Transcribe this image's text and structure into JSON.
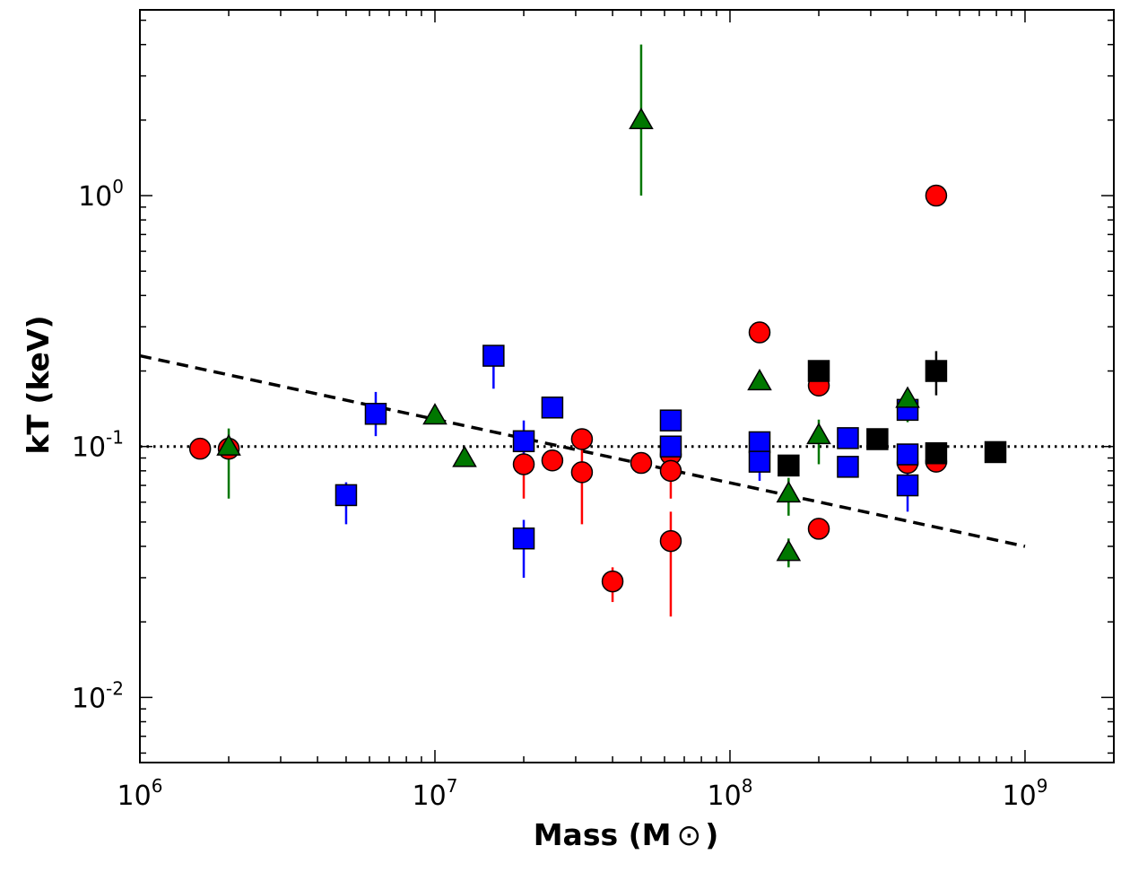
{
  "chart_data": {
    "type": "scatter",
    "xscale": "log",
    "yscale": "log",
    "xlim": [
      1000000,
      2000000000
    ],
    "ylim": [
      0.0055,
      5.5
    ],
    "xlabel": "Mass (M",
    "xlabel_symbol": "⊙",
    "xlabel_close": ")",
    "ylabel": "kT (keV)",
    "x_ticks": [
      {
        "value": 1000000,
        "base": "10",
        "exp": "6"
      },
      {
        "value": 10000000,
        "base": "10",
        "exp": "7"
      },
      {
        "value": 100000000,
        "base": "10",
        "exp": "8"
      },
      {
        "value": 1000000000,
        "base": "10",
        "exp": "9"
      }
    ],
    "y_ticks": [
      {
        "value": 0.01,
        "base": "10",
        "exp": "-2"
      },
      {
        "value": 0.1,
        "base": "10",
        "exp": "-1"
      },
      {
        "value": 1,
        "base": "10",
        "exp": "0"
      }
    ],
    "reference_lines": [
      {
        "name": "dotted-reference",
        "style": "dotted",
        "points": [
          [
            1000000,
            0.1
          ],
          [
            2000000000,
            0.1
          ]
        ]
      },
      {
        "name": "dashed-fit",
        "style": "dashed",
        "points": [
          [
            1000000,
            0.23
          ],
          [
            1000000000,
            0.04
          ]
        ]
      }
    ],
    "series": [
      {
        "name": "red-circles",
        "marker": "circle",
        "color": "#ff0000",
        "points": [
          {
            "x": 1600000,
            "y": 0.098
          },
          {
            "x": 2000000,
            "y": 0.098
          },
          {
            "x": 20000000,
            "y": 0.085,
            "err": [
              0.062,
              0.115
            ]
          },
          {
            "x": 25000000,
            "y": 0.088
          },
          {
            "x": 31500000,
            "y": 0.107
          },
          {
            "x": 31500000,
            "y": 0.079,
            "err": [
              0.049,
              0.105
            ]
          },
          {
            "x": 40000000,
            "y": 0.029,
            "err": [
              0.024,
              0.033
            ]
          },
          {
            "x": 50000000,
            "y": 0.086
          },
          {
            "x": 63000000,
            "y": 0.093
          },
          {
            "x": 63000000,
            "y": 0.08,
            "err": [
              0.062,
              0.1
            ]
          },
          {
            "x": 63000000,
            "y": 0.042,
            "err": [
              0.021,
              0.055
            ]
          },
          {
            "x": 126000000,
            "y": 0.285
          },
          {
            "x": 200000000,
            "y": 0.175
          },
          {
            "x": 200000000,
            "y": 0.047
          },
          {
            "x": 400000000,
            "y": 0.086
          },
          {
            "x": 500000000,
            "y": 1.0
          },
          {
            "x": 500000000,
            "y": 0.087
          }
        ]
      },
      {
        "name": "blue-squares",
        "marker": "square",
        "color": "#0000ff",
        "points": [
          {
            "x": 5000000,
            "y": 0.064,
            "err": [
              0.049,
              0.072
            ]
          },
          {
            "x": 6300000,
            "y": 0.135,
            "err": [
              0.11,
              0.165
            ]
          },
          {
            "x": 15800000,
            "y": 0.23,
            "err": [
              0.17,
              0.23
            ]
          },
          {
            "x": 20000000,
            "y": 0.105,
            "err": [
              0.08,
              0.127
            ]
          },
          {
            "x": 20000000,
            "y": 0.043,
            "err": [
              0.03,
              0.051
            ]
          },
          {
            "x": 25000000,
            "y": 0.143
          },
          {
            "x": 63000000,
            "y": 0.127
          },
          {
            "x": 63000000,
            "y": 0.1
          },
          {
            "x": 126000000,
            "y": 0.104
          },
          {
            "x": 126000000,
            "y": 0.087,
            "err": [
              0.073,
              0.1
            ]
          },
          {
            "x": 251000000,
            "y": 0.108
          },
          {
            "x": 251000000,
            "y": 0.083
          },
          {
            "x": 400000000,
            "y": 0.14
          },
          {
            "x": 400000000,
            "y": 0.093
          },
          {
            "x": 400000000,
            "y": 0.07,
            "err": [
              0.055,
              0.08
            ]
          }
        ]
      },
      {
        "name": "green-triangles",
        "marker": "triangle",
        "color": "#007700",
        "points": [
          {
            "x": 2000000,
            "y": 0.1,
            "err": [
              0.062,
              0.118
            ]
          },
          {
            "x": 10000000,
            "y": 0.133
          },
          {
            "x": 12600000,
            "y": 0.09
          },
          {
            "x": 50000000,
            "y": 2.0,
            "err": [
              1.0,
              4.0
            ]
          },
          {
            "x": 126000000,
            "y": 0.182
          },
          {
            "x": 158000000,
            "y": 0.065,
            "err": [
              0.053,
              0.075
            ]
          },
          {
            "x": 158000000,
            "y": 0.038,
            "err": [
              0.033,
              0.043
            ]
          },
          {
            "x": 200000000,
            "y": 0.111,
            "err": [
              0.085,
              0.128
            ]
          },
          {
            "x": 400000000,
            "y": 0.155,
            "err": [
              0.125,
              0.17
            ]
          }
        ]
      },
      {
        "name": "black-squares",
        "marker": "square",
        "color": "#000000",
        "points": [
          {
            "x": 158000000,
            "y": 0.084
          },
          {
            "x": 200000000,
            "y": 0.2
          },
          {
            "x": 316000000,
            "y": 0.107
          },
          {
            "x": 500000000,
            "y": 0.2,
            "err": [
              0.16,
              0.24
            ]
          },
          {
            "x": 500000000,
            "y": 0.094
          },
          {
            "x": 794000000,
            "y": 0.095
          }
        ]
      }
    ]
  }
}
